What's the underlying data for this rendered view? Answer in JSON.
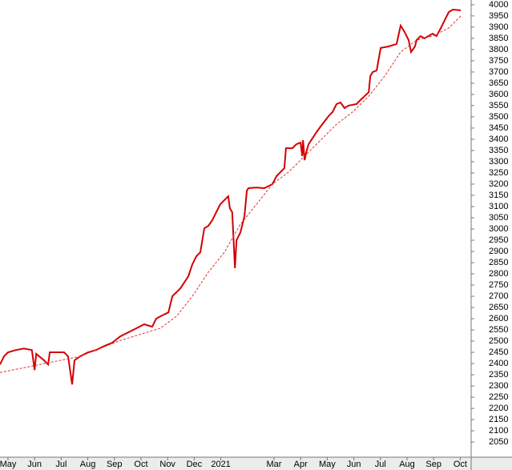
{
  "chart_data": {
    "type": "line",
    "x_axis_note": null,
    "xlim": [
      0.2,
      17.91
    ],
    "ylim": [
      1986,
      4021
    ],
    "xticks": [
      {
        "value": 0.5,
        "label": "May"
      },
      {
        "value": 1.5,
        "label": "Jun"
      },
      {
        "value": 2.5,
        "label": "Jul"
      },
      {
        "value": 3.5,
        "label": "Aug"
      },
      {
        "value": 4.5,
        "label": "Sep"
      },
      {
        "value": 5.5,
        "label": "Oct"
      },
      {
        "value": 6.5,
        "label": "Nov"
      },
      {
        "value": 7.5,
        "label": "Dec"
      },
      {
        "value": 8.5,
        "label": "2021"
      },
      {
        "value": 10.5,
        "label": "Mar"
      },
      {
        "value": 11.5,
        "label": "Apr"
      },
      {
        "value": 12.5,
        "label": "May"
      },
      {
        "value": 13.5,
        "label": "Jun"
      },
      {
        "value": 14.5,
        "label": "Jul"
      },
      {
        "value": 15.5,
        "label": "Aug"
      },
      {
        "value": 16.5,
        "label": "Sep"
      },
      {
        "value": 17.5,
        "label": "Oct"
      }
    ],
    "yticks": [
      2050,
      2100,
      2150,
      2200,
      2250,
      2300,
      2350,
      2400,
      2450,
      2500,
      2550,
      2600,
      2650,
      2700,
      2750,
      2800,
      2850,
      2900,
      2950,
      3000,
      3050,
      3100,
      3150,
      3200,
      3250,
      3300,
      3350,
      3400,
      3450,
      3500,
      3550,
      3600,
      3650,
      3700,
      3750,
      3800,
      3850,
      3900,
      3950,
      4000
    ],
    "series": [
      {
        "color": "#d40000",
        "dashed": false,
        "x": [
          0.2,
          0.35,
          0.5,
          0.8,
          1.1,
          1.4,
          1.5,
          1.56,
          1.86,
          2.01,
          2.07,
          2.31,
          2.61,
          2.76,
          2.91,
          3.0,
          3.21,
          3.51,
          3.81,
          4.12,
          4.42,
          4.72,
          5.02,
          5.32,
          5.62,
          5.92,
          6.07,
          6.22,
          6.53,
          6.68,
          6.98,
          7.28,
          7.43,
          7.58,
          7.73,
          7.88,
          8.03,
          8.18,
          8.33,
          8.48,
          8.63,
          8.78,
          8.84,
          8.93,
          8.99,
          9.03,
          9.09,
          9.24,
          9.39,
          9.48,
          9.54,
          9.84,
          10.14,
          10.44,
          10.59,
          10.74,
          10.89,
          10.95,
          11.19,
          11.34,
          11.5,
          11.56,
          11.59,
          11.65,
          11.71,
          11.8,
          12.1,
          12.25,
          12.55,
          12.7,
          12.85,
          13.0,
          13.15,
          13.3,
          13.6,
          13.75,
          13.9,
          14.06,
          14.12,
          14.21,
          14.36,
          14.51,
          14.81,
          15.11,
          15.26,
          15.41,
          15.56,
          15.65,
          15.8,
          15.86,
          16.01,
          16.16,
          16.46,
          16.61,
          16.77,
          16.92,
          17.07,
          17.22,
          17.52
        ],
        "values": [
          2396,
          2432,
          2450,
          2460,
          2467,
          2460,
          2371,
          2443,
          2414,
          2396,
          2450,
          2450,
          2450,
          2432,
          2307,
          2414,
          2432,
          2450,
          2460,
          2478,
          2493,
          2521,
          2539,
          2557,
          2575,
          2564,
          2600,
          2610,
          2628,
          2700,
          2735,
          2789,
          2842,
          2878,
          2896,
          3003,
          3014,
          3039,
          3075,
          3110,
          3128,
          3146,
          3092,
          3075,
          2932,
          2825,
          2950,
          2985,
          3057,
          3171,
          3182,
          3185,
          3182,
          3200,
          3235,
          3253,
          3271,
          3360,
          3360,
          3378,
          3385,
          3325,
          3396,
          3307,
          3342,
          3378,
          3432,
          3457,
          3503,
          3521,
          3557,
          3564,
          3539,
          3550,
          3557,
          3575,
          3592,
          3610,
          3682,
          3700,
          3707,
          3807,
          3814,
          3825,
          3907,
          3878,
          3842,
          3789,
          3814,
          3842,
          3860,
          3850,
          3871,
          3860,
          3896,
          3932,
          3967,
          3978,
          3975
        ]
      },
      {
        "color": "#e03030",
        "dashed": true,
        "x": [
          0.2,
          1.71,
          3.21,
          4.72,
          6.22,
          6.83,
          7.43,
          8.03,
          8.63,
          9.24,
          9.84,
          10.44,
          11.04,
          11.65,
          12.25,
          12.85,
          13.45,
          14.06,
          14.66,
          15.26,
          15.86,
          16.46,
          17.07,
          17.52
        ],
        "values": [
          2360,
          2396,
          2432,
          2503,
          2557,
          2610,
          2700,
          2807,
          2896,
          3021,
          3110,
          3200,
          3253,
          3325,
          3396,
          3467,
          3521,
          3592,
          3682,
          3789,
          3842,
          3860,
          3896,
          3950
        ]
      }
    ]
  }
}
